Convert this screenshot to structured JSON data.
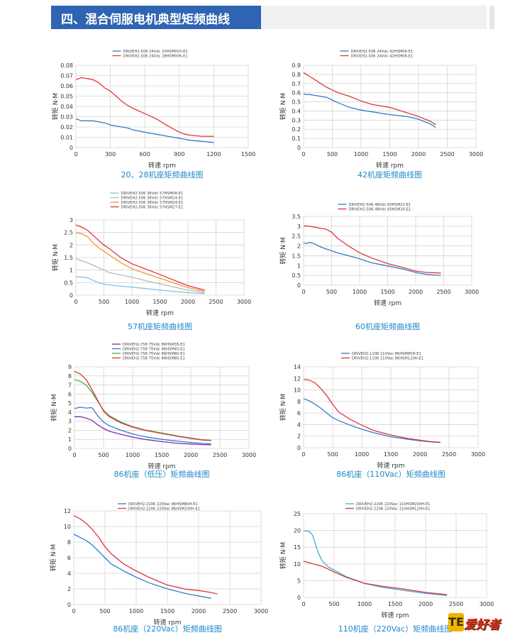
{
  "header": {
    "title": "四、混合伺服电机典型矩频曲线"
  },
  "colors": {
    "header_bg": "#2f64b2",
    "caption": "#1e88c8",
    "grid": "#d4d4d4"
  },
  "chart_data": [
    {
      "type": "line",
      "caption": "20、28机座矩频曲线图",
      "xlabel": "转速 rpm",
      "ylabel": "转矩 N·M",
      "xlim": [
        0,
        1500
      ],
      "ylim": [
        0,
        0.08
      ],
      "xticks": [
        "0",
        "300",
        "600",
        "900",
        "1200",
        "1500"
      ],
      "yticks": [
        "0",
        "0.01",
        "0.02",
        "0.03",
        "0.04",
        "0.05",
        "0.06",
        "0.07",
        "0.08"
      ],
      "grid": true,
      "legend": "top",
      "series": [
        {
          "name": "DRIVEH2-506 24Vdc 20HSM003-E1",
          "color": "#2f7cc6",
          "x": [
            0,
            50,
            100,
            150,
            200,
            250,
            300,
            350,
            400,
            450,
            500,
            600,
            700,
            800,
            900,
            1000,
            1100,
            1200
          ],
          "y": [
            0.028,
            0.026,
            0.026,
            0.026,
            0.025,
            0.024,
            0.022,
            0.021,
            0.02,
            0.019,
            0.017,
            0.015,
            0.013,
            0.011,
            0.009,
            0.007,
            0.006,
            0.005
          ]
        },
        {
          "name": "DRIVEH2-506 24Vdc 28HSM006-E1",
          "color": "#e0343c",
          "x": [
            0,
            50,
            100,
            150,
            200,
            250,
            300,
            350,
            400,
            450,
            500,
            600,
            700,
            800,
            900,
            950,
            1000,
            1100,
            1200
          ],
          "y": [
            0.066,
            0.068,
            0.067,
            0.066,
            0.063,
            0.058,
            0.055,
            0.05,
            0.045,
            0.041,
            0.038,
            0.033,
            0.028,
            0.021,
            0.015,
            0.013,
            0.012,
            0.011,
            0.011
          ]
        }
      ]
    },
    {
      "type": "line",
      "caption": "42机座矩频曲线图",
      "xlabel": "转速 rpm",
      "ylabel": "转矩 N·M",
      "xlim": [
        0,
        3000
      ],
      "ylim": [
        0,
        0.9
      ],
      "xticks": [
        "0",
        "500",
        "1000",
        "1500",
        "2000",
        "2500",
        "3000"
      ],
      "yticks": [
        "0",
        "0.1",
        "0.2",
        "0.3",
        "0.4",
        "0.5",
        "0.6",
        "0.7",
        "0.8",
        "0.9"
      ],
      "grid": true,
      "legend": "top",
      "series": [
        {
          "name": "DRIVEH2-506 24Vdc 42HSM06-E1",
          "color": "#2f7cc6",
          "x": [
            0,
            50,
            100,
            200,
            300,
            400,
            500,
            600,
            800,
            1000,
            1200,
            1500,
            1800,
            2000,
            2200,
            2300
          ],
          "y": [
            0.59,
            0.58,
            0.58,
            0.57,
            0.56,
            0.55,
            0.52,
            0.49,
            0.44,
            0.41,
            0.39,
            0.36,
            0.34,
            0.31,
            0.26,
            0.22
          ]
        },
        {
          "name": "DRIVEH2-506 24Vdc 42HSM08-E1",
          "color": "#e0343c",
          "x": [
            0,
            50,
            100,
            200,
            300,
            400,
            500,
            600,
            800,
            1000,
            1200,
            1500,
            1800,
            2000,
            2200,
            2300
          ],
          "y": [
            0.82,
            0.8,
            0.78,
            0.74,
            0.7,
            0.66,
            0.63,
            0.6,
            0.56,
            0.51,
            0.47,
            0.44,
            0.38,
            0.34,
            0.29,
            0.25
          ]
        }
      ]
    },
    {
      "type": "line",
      "caption": "57机座矩频曲线图",
      "xlabel": "转速 rpm",
      "ylabel": "转矩 N·M",
      "xlim": [
        0,
        3000
      ],
      "ylim": [
        0,
        3
      ],
      "xticks": [
        "0",
        "500",
        "1000",
        "1500",
        "2000",
        "2500",
        "3000"
      ],
      "yticks": [
        "0",
        "0.5",
        "1",
        "1.5",
        "2",
        "2.5",
        "3"
      ],
      "grid": true,
      "legend": "top",
      "series": [
        {
          "name": "DRIVEH2-506 36Vdc 57HSM08-E1",
          "color": "#7ec4e4",
          "x": [
            0,
            100,
            200,
            300,
            400,
            500,
            700,
            1000,
            1300,
            1600,
            2000,
            2300
          ],
          "y": [
            0.74,
            0.72,
            0.7,
            0.6,
            0.5,
            0.44,
            0.38,
            0.32,
            0.25,
            0.18,
            0.1,
            0.06
          ]
        },
        {
          "name": "DRIVEH2-506 36Vdc 57HSM14-E1",
          "color": "#b8b8b8",
          "x": [
            0,
            100,
            200,
            300,
            400,
            500,
            600,
            700,
            1000,
            1300,
            1600,
            2000,
            2300
          ],
          "y": [
            1.45,
            1.38,
            1.3,
            1.2,
            1.1,
            1.0,
            0.9,
            0.85,
            0.72,
            0.55,
            0.4,
            0.2,
            0.1
          ]
        },
        {
          "name": "DRIVEH2-506 36Vdc 57HSM24-E1",
          "color": "#f0962e",
          "x": [
            0,
            100,
            200,
            300,
            400,
            500,
            600,
            800,
            1000,
            1300,
            1600,
            2000,
            2300
          ],
          "y": [
            2.5,
            2.45,
            2.35,
            2.1,
            1.9,
            1.75,
            1.6,
            1.3,
            1.05,
            0.82,
            0.6,
            0.3,
            0.15
          ]
        },
        {
          "name": "DRIVEH2-506 36Vdc 57HSM27-E1",
          "color": "#e0343c",
          "x": [
            0,
            100,
            200,
            300,
            400,
            500,
            600,
            800,
            1000,
            1300,
            1600,
            2000,
            2300
          ],
          "y": [
            2.8,
            2.72,
            2.6,
            2.4,
            2.2,
            2.0,
            1.85,
            1.5,
            1.25,
            1.0,
            0.73,
            0.38,
            0.2
          ]
        }
      ]
    },
    {
      "type": "line",
      "caption": "60机座矩频曲线图",
      "xlabel": "转速 rpm",
      "ylabel": "转矩 N·M",
      "xlim": [
        0,
        3000
      ],
      "ylim": [
        0,
        3.5
      ],
      "xticks": [
        "0",
        "500",
        "1000",
        "1500",
        "2000",
        "2500",
        "3000"
      ],
      "yticks": [
        "0",
        "0.5",
        "1",
        "1.5",
        "2",
        "2.5",
        "3",
        "3.5"
      ],
      "grid": true,
      "legend": "top",
      "series": [
        {
          "name": "DRIVEH2-506 48Vdc 60HSM22-E1",
          "color": "#2f7cc6",
          "x": [
            0,
            50,
            100,
            200,
            300,
            400,
            500,
            600,
            800,
            1000,
            1200,
            1500,
            1800,
            2000,
            2200,
            2450
          ],
          "y": [
            2.15,
            2.12,
            2.18,
            2.1,
            1.95,
            1.85,
            1.75,
            1.65,
            1.5,
            1.35,
            1.15,
            0.98,
            0.8,
            0.65,
            0.55,
            0.5
          ]
        },
        {
          "name": "DRIVEH2-506 48Vdc 60HSM30-E1",
          "color": "#e0343c",
          "x": [
            0,
            50,
            100,
            200,
            300,
            400,
            500,
            600,
            800,
            1000,
            1200,
            1500,
            1800,
            2000,
            2200,
            2450
          ],
          "y": [
            3.0,
            3.02,
            3.0,
            2.95,
            2.9,
            2.85,
            2.7,
            2.4,
            2.0,
            1.65,
            1.4,
            1.1,
            0.88,
            0.72,
            0.65,
            0.62
          ]
        }
      ]
    },
    {
      "type": "line",
      "caption": "86机座（低压）矩频曲线图",
      "xlabel": "转速 rpm",
      "ylabel": "转矩 N·M",
      "xlim": [
        0,
        3000
      ],
      "ylim": [
        0,
        9
      ],
      "xticks": [
        "0",
        "500",
        "1000",
        "1500",
        "2000",
        "2500",
        "3000"
      ],
      "yticks": [
        "0",
        "1",
        "2",
        "3",
        "4",
        "5",
        "6",
        "7",
        "8",
        "9"
      ],
      "grid": true,
      "legend": "top",
      "series": [
        {
          "name": "DRIVEH2-758 75Vdc 86HSM35-E1",
          "color": "#7a2eb0",
          "x": [
            0,
            100,
            200,
            300,
            400,
            500,
            600,
            800,
            1000,
            1200,
            1500,
            1800,
            2000,
            2200,
            2350
          ],
          "y": [
            3.5,
            3.5,
            3.35,
            3.1,
            2.6,
            2.2,
            1.9,
            1.55,
            1.25,
            1.0,
            0.75,
            0.55,
            0.48,
            0.42,
            0.4
          ]
        },
        {
          "name": "DRIVEH2-758 75Vdc 86HSM45-E1",
          "color": "#2f7cc6",
          "x": [
            0,
            100,
            200,
            300,
            400,
            500,
            600,
            800,
            1000,
            1200,
            1500,
            1800,
            2000,
            2200,
            2350
          ],
          "y": [
            4.4,
            4.55,
            4.45,
            4.5,
            3.6,
            2.9,
            2.5,
            2.0,
            1.6,
            1.3,
            1.0,
            0.78,
            0.65,
            0.55,
            0.5
          ]
        },
        {
          "name": "DRIVEH2-758 75Vdc 86HSM80-E1",
          "color": "#3fae4a",
          "x": [
            0,
            100,
            200,
            300,
            400,
            500,
            600,
            800,
            1000,
            1200,
            1500,
            1800,
            2000,
            2200,
            2350
          ],
          "y": [
            7.6,
            7.4,
            7.0,
            6.2,
            5.2,
            4.2,
            3.6,
            2.9,
            2.4,
            2.05,
            1.7,
            1.35,
            1.15,
            0.95,
            0.9
          ]
        },
        {
          "name": "DRIVEH2-758 75Vdc 86HSM85-E1",
          "color": "#e0343c",
          "x": [
            0,
            100,
            200,
            300,
            400,
            500,
            600,
            800,
            1000,
            1200,
            1500,
            1800,
            2000,
            2200,
            2350
          ],
          "y": [
            8.5,
            8.2,
            7.6,
            6.5,
            5.3,
            4.1,
            3.5,
            2.8,
            2.35,
            2.0,
            1.65,
            1.3,
            1.1,
            0.92,
            0.88
          ]
        }
      ]
    },
    {
      "type": "line",
      "caption": "86机座（110Vac）矩频曲线图",
      "xlabel": "转速 rpm",
      "ylabel": "转矩 N·M",
      "xlim": [
        0,
        3000
      ],
      "ylim": [
        0,
        14
      ],
      "xticks": [
        "0",
        "500",
        "1000",
        "1500",
        "2000",
        "2500",
        "3000"
      ],
      "yticks": [
        "0",
        "2",
        "4",
        "6",
        "8",
        "10",
        "12",
        "14"
      ],
      "grid": true,
      "legend": "top",
      "series": [
        {
          "name": "DRIVEH2-1108 110Vac 86HSM85H-E1",
          "color": "#2f7cc6",
          "x": [
            0,
            100,
            200,
            300,
            400,
            500,
            600,
            800,
            1000,
            1200,
            1500,
            1800,
            2000,
            2200,
            2350
          ],
          "y": [
            8.5,
            8.1,
            7.5,
            6.8,
            6.0,
            5.2,
            4.7,
            3.9,
            3.2,
            2.6,
            1.9,
            1.45,
            1.2,
            1.0,
            0.9
          ]
        },
        {
          "name": "DRIVEH2-1108 110Vac 86HSM120H-E1",
          "color": "#e0343c",
          "x": [
            0,
            100,
            200,
            300,
            400,
            500,
            600,
            800,
            1000,
            1200,
            1500,
            1800,
            2000,
            2200,
            2350
          ],
          "y": [
            11.8,
            11.7,
            11.2,
            10.2,
            9.0,
            7.5,
            6.2,
            4.9,
            3.9,
            3.0,
            2.2,
            1.6,
            1.3,
            1.05,
            0.95
          ]
        }
      ]
    },
    {
      "type": "line",
      "caption": "86机座（220Vac）矩频曲线图",
      "xlabel": "转速 rpm",
      "ylabel": "转矩 N·M",
      "xlim": [
        0,
        3000
      ],
      "ylim": [
        0,
        12
      ],
      "xticks": [
        "0",
        "500",
        "1000",
        "1500",
        "2000",
        "2500",
        "3000"
      ],
      "yticks": [
        "0",
        "2",
        "4",
        "6",
        "8",
        "10",
        "12"
      ],
      "grid": true,
      "legend": "top",
      "series": [
        {
          "name": "DRIVEH2-2206 220Vac 86HSM80H-E1",
          "color": "#2f7cc6",
          "x": [
            0,
            100,
            200,
            300,
            400,
            500,
            600,
            800,
            1000,
            1200,
            1500,
            1800,
            2000,
            2200
          ],
          "y": [
            9.0,
            8.6,
            8.2,
            7.6,
            6.8,
            6.0,
            5.2,
            4.3,
            3.5,
            2.8,
            2.0,
            1.4,
            1.1,
            0.8
          ]
        },
        {
          "name": "DRIVEH2-2206 220Vac 86HSM100H-E1",
          "color": "#e0343c",
          "x": [
            0,
            100,
            200,
            300,
            400,
            500,
            600,
            800,
            1000,
            1200,
            1500,
            1800,
            2000,
            2200,
            2300
          ],
          "y": [
            11.4,
            11.0,
            10.4,
            9.6,
            8.6,
            7.4,
            6.5,
            5.2,
            4.3,
            3.5,
            2.5,
            1.95,
            1.8,
            1.55,
            1.35
          ]
        }
      ]
    },
    {
      "type": "line",
      "caption": "110机座（220Vac）矩频曲线图",
      "xlabel": "转速 rpm",
      "ylabel": "转矩 N·M",
      "xlim": [
        0,
        3000
      ],
      "ylim": [
        0,
        25
      ],
      "xticks": [
        "0",
        "500",
        "1000",
        "1500",
        "2000",
        "2500",
        "3000"
      ],
      "yticks": [
        "0",
        "5",
        "10",
        "15",
        "20",
        "25"
      ],
      "grid": true,
      "legend": "top",
      "series": [
        {
          "name": "DRIVEH2-2206 220Vac 110HSM200H-E1",
          "color": "#3bb0d8",
          "x": [
            0,
            50,
            100,
            150,
            200,
            250,
            300,
            400,
            500,
            700,
            1000,
            1300,
            1600,
            2000,
            2350
          ],
          "y": [
            20,
            19.8,
            19.6,
            18.5,
            15.5,
            13,
            11,
            9.2,
            8.2,
            6.2,
            4.2,
            3.0,
            2.2,
            1.2,
            0.6
          ]
        },
        {
          "name": "DRIVEH2-2206 220Vac 110HSM120H-E1",
          "color": "#e0343c",
          "x": [
            0,
            100,
            200,
            300,
            400,
            500,
            700,
            1000,
            1300,
            1600,
            2000,
            2350
          ],
          "y": [
            10.8,
            10.3,
            9.8,
            9.3,
            8.5,
            7.6,
            6.0,
            4.2,
            3.3,
            2.6,
            1.5,
            0.8
          ]
        }
      ]
    }
  ],
  "logo": {
    "mark": "ΤΕ",
    "text": "爱好者"
  }
}
